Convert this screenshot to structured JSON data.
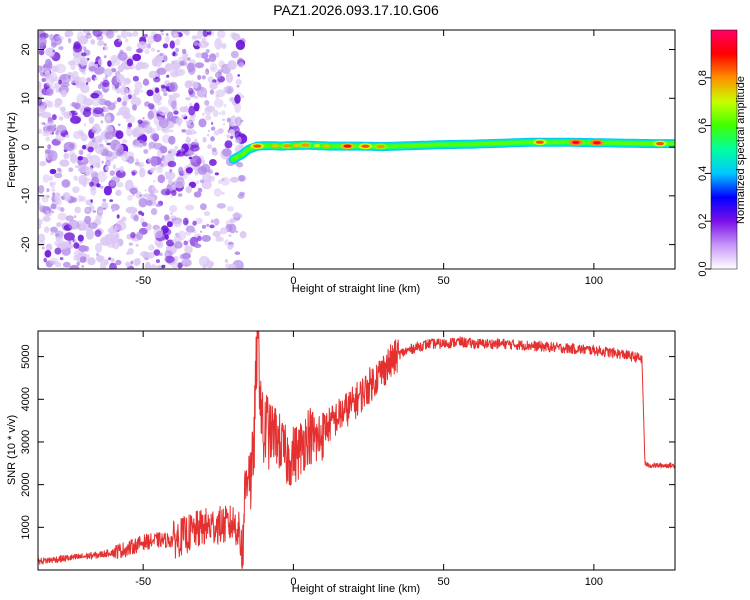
{
  "title": "PAZ1.2026.093.17.10.G06",
  "colors": {
    "snr_line": "#e53030",
    "frame": "#000000",
    "noise_light": "#dcc8f4",
    "noise_mid": "#b088e8",
    "noise_dark": "#6a10d8",
    "colorbar_stops": [
      "#ffffff",
      "#c896f8",
      "#7a10e8",
      "#0000ff",
      "#00c8ff",
      "#00ffa0",
      "#40ff00",
      "#c8ff00",
      "#ff9000",
      "#ff0000",
      "#ff0068"
    ]
  },
  "chart_data": [
    {
      "id": "spectrogram",
      "type": "heatmap",
      "xlabel": "Height of straight line (km)",
      "ylabel": "Frequency (Hz)",
      "xlim": [
        -85,
        127
      ],
      "ylim": [
        -25,
        24
      ],
      "xticks": [
        -50,
        0,
        50,
        100
      ],
      "yticks": [
        -20,
        -10,
        0,
        10,
        20
      ],
      "noise_region_x": [
        -85,
        -18
      ],
      "signal_track": {
        "x": [
          -20,
          -17,
          -15,
          -12,
          -8,
          -4,
          0,
          4,
          8,
          12,
          16,
          22,
          30,
          40,
          50,
          60,
          70,
          80,
          90,
          100,
          110,
          120,
          127
        ],
        "freq": [
          -2.5,
          -1.5,
          -0.5,
          0.2,
          0.3,
          0.2,
          0.3,
          0.4,
          0.3,
          0.2,
          0.2,
          0.2,
          0.1,
          0.3,
          0.5,
          0.6,
          0.8,
          1.0,
          1.0,
          0.9,
          0.8,
          0.7,
          0.7
        ],
        "peaks": [
          {
            "x": -12,
            "amplitude": 0.85
          },
          {
            "x": -6,
            "amplitude": 0.75
          },
          {
            "x": -2,
            "amplitude": 0.8
          },
          {
            "x": 1,
            "amplitude": 0.75
          },
          {
            "x": 4,
            "amplitude": 0.8
          },
          {
            "x": 8,
            "amplitude": 0.7
          },
          {
            "x": 11,
            "amplitude": 0.75
          },
          {
            "x": 18,
            "amplitude": 0.9
          },
          {
            "x": 24,
            "amplitude": 0.85
          },
          {
            "x": 29,
            "amplitude": 0.8
          },
          {
            "x": 82,
            "amplitude": 0.85
          },
          {
            "x": 94,
            "amplitude": 0.95
          },
          {
            "x": 101,
            "amplitude": 0.95
          },
          {
            "x": 122,
            "amplitude": 0.85
          }
        ]
      },
      "colorbar": {
        "label": "Normalized spectral amplitude",
        "range": [
          0,
          1
        ],
        "ticks": [
          0.0,
          0.2,
          0.4,
          0.6,
          0.8
        ],
        "tick_labels": [
          "0.0",
          "0.2",
          "0.4",
          "0.6",
          "0.8"
        ]
      }
    },
    {
      "id": "snr",
      "type": "line",
      "xlabel": "Height of straight line (km)",
      "ylabel": "SNR (10 * v/v)",
      "xlim": [
        -85,
        127
      ],
      "ylim": [
        0,
        5600
      ],
      "xticks": [
        -50,
        0,
        50,
        100
      ],
      "yticks": [
        1000,
        2000,
        3000,
        4000,
        5000
      ],
      "series": [
        {
          "name": "SNR",
          "x": [
            -85,
            -75,
            -65,
            -60,
            -55,
            -50,
            -45,
            -40,
            -35,
            -30,
            -25,
            -22,
            -20,
            -18,
            -17,
            -16,
            -15,
            -14,
            -13,
            -12,
            -11,
            -10,
            -9,
            -8,
            -6,
            -4,
            -2,
            0,
            2,
            5,
            8,
            10,
            12,
            15,
            20,
            25,
            30,
            35,
            40,
            45,
            50,
            55,
            60,
            70,
            80,
            90,
            100,
            110,
            116,
            117,
            118,
            127
          ],
          "y": [
            200,
            280,
            350,
            420,
            500,
            650,
            700,
            700,
            850,
            1000,
            1050,
            1050,
            1100,
            900,
            500,
            1900,
            2600,
            2000,
            3200,
            5600,
            4200,
            3000,
            3400,
            3200,
            3200,
            2900,
            2600,
            2700,
            2800,
            3200,
            3000,
            3300,
            3400,
            3600,
            3900,
            4300,
            4700,
            5050,
            5200,
            5300,
            5300,
            5350,
            5300,
            5300,
            5250,
            5200,
            5150,
            5050,
            4950,
            2500,
            2450,
            2450
          ]
        }
      ]
    }
  ]
}
